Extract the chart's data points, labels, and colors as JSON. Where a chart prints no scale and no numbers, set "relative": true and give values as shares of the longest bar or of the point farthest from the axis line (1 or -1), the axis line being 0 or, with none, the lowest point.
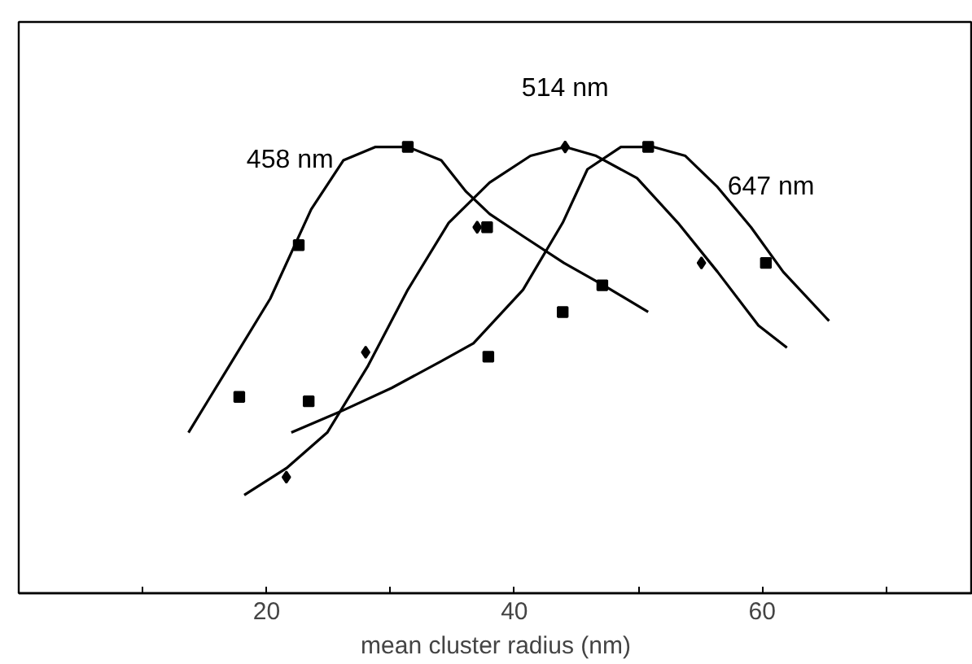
{
  "chart_data": {
    "type": "line",
    "relative": true,
    "xlabel": "mean cluster radius (nm)",
    "xlim": [
      0,
      77
    ],
    "xticks": [
      {
        "value": 10,
        "label": null
      },
      20,
      {
        "value": 30,
        "label": null
      },
      40,
      {
        "value": 50,
        "label": null
      },
      60,
      {
        "value": 70,
        "label": null
      }
    ],
    "grid": false,
    "legend": false,
    "series": [
      {
        "name": "458 nm",
        "color": "#000000",
        "marker": "none",
        "x": [
          13.7,
          17.0,
          20.3,
          23.6,
          26.2,
          28.8,
          31.4,
          34.1,
          36.1,
          38.0,
          40.7,
          44.0,
          47.2,
          50.8
        ],
        "values": [
          0.36,
          0.51,
          0.66,
          0.86,
          0.97,
          1.0,
          1.0,
          0.97,
          0.9,
          0.85,
          0.8,
          0.74,
          0.69,
          0.63
        ]
      },
      {
        "name": "514 nm",
        "color": "#000000",
        "marker": "none",
        "x": [
          18.2,
          21.6,
          24.9,
          28.2,
          31.4,
          34.7,
          38.0,
          41.3,
          44.1,
          46.6,
          49.9,
          53.2,
          56.4,
          59.7,
          62.0
        ],
        "values": [
          0.22,
          0.28,
          0.36,
          0.51,
          0.68,
          0.83,
          0.92,
          0.98,
          1.0,
          0.98,
          0.93,
          0.83,
          0.72,
          0.6,
          0.55
        ]
      },
      {
        "name": "647 nm",
        "color": "#000000",
        "marker": "none",
        "x": [
          22.0,
          26.2,
          30.1,
          34.1,
          36.7,
          40.7,
          43.9,
          45.9,
          48.6,
          51.2,
          53.8,
          56.4,
          59.1,
          61.7,
          65.4
        ],
        "values": [
          0.36,
          0.41,
          0.46,
          0.52,
          0.56,
          0.68,
          0.83,
          0.95,
          1.0,
          1.0,
          0.98,
          0.91,
          0.82,
          0.72,
          0.61
        ]
      },
      {
        "type": "scatter",
        "color": "#000000",
        "marker": "square",
        "x": [
          17.8,
          22.6,
          31.4,
          37.8,
          47.1
        ],
        "values": [
          0.44,
          0.78,
          1.0,
          0.82,
          0.69
        ]
      },
      {
        "type": "scatter",
        "color": "#000000",
        "marker": "diamond",
        "x": [
          21.6,
          28.0,
          37.0,
          44.1,
          55.1
        ],
        "values": [
          0.26,
          0.54,
          0.82,
          1.0,
          0.74
        ]
      },
      {
        "type": "scatter",
        "color": "#000000",
        "marker": "square",
        "x": [
          23.4,
          37.9,
          43.9,
          50.8,
          60.3
        ],
        "values": [
          0.43,
          0.53,
          0.63,
          1.0,
          0.74
        ]
      }
    ]
  }
}
